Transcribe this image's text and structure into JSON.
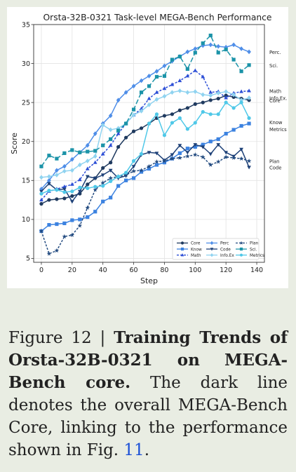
{
  "chart_data": {
    "type": "line",
    "title": "Orsta-32B-0321 Task-level MEGA-Bench Performance",
    "xlabel": "Step",
    "ylabel": "Score",
    "xlim": [
      -5,
      145
    ],
    "ylim": [
      4.5,
      35
    ],
    "xticks": [
      0,
      20,
      40,
      60,
      80,
      100,
      120,
      140
    ],
    "yticks": [
      5,
      10,
      15,
      20,
      25,
      30,
      35
    ],
    "grid": true,
    "legend": "bottom-right",
    "x": [
      0,
      5,
      10,
      15,
      20,
      25,
      30,
      35,
      40,
      45,
      50,
      55,
      60,
      65,
      70,
      75,
      80,
      85,
      90,
      95,
      100,
      105,
      110,
      115,
      120,
      125,
      130,
      135
    ],
    "series": [
      {
        "name": "Core",
        "label": "Core",
        "color": "#1f3a5f",
        "marker": "circle",
        "dash": "",
        "values": [
          12.0,
          12.5,
          12.6,
          12.7,
          13.0,
          13.3,
          14.5,
          15.3,
          16.6,
          17.3,
          19.3,
          20.5,
          21.3,
          21.7,
          22.3,
          23.0,
          23.3,
          23.5,
          24.0,
          24.3,
          24.8,
          25.0,
          25.3,
          25.5,
          25.9,
          25.7,
          25.5,
          25.3
        ]
      },
      {
        "name": "Know",
        "label": "Know\nMetrics",
        "color": "#3c82e0",
        "marker": "square",
        "dash": "",
        "values": [
          8.5,
          9.3,
          9.4,
          9.5,
          9.9,
          10.0,
          10.3,
          11.0,
          12.3,
          12.8,
          14.3,
          15.0,
          15.3,
          16.1,
          16.5,
          17.0,
          17.3,
          17.8,
          18.5,
          19.1,
          19.3,
          19.6,
          20.0,
          20.3,
          21.0,
          21.5,
          22.0,
          22.3
        ]
      },
      {
        "name": "Math",
        "label": "Math",
        "color": "#2c4ed6",
        "marker": "triangle-up",
        "dash": "3,2",
        "values": [
          12.5,
          13.6,
          13.9,
          14.2,
          14.5,
          15.1,
          16.5,
          17.3,
          18.4,
          19.5,
          21.0,
          22.3,
          23.4,
          24.2,
          25.5,
          26.3,
          26.8,
          27.3,
          27.8,
          28.4,
          29.1,
          28.3,
          26.3,
          26.4,
          25.6,
          26.2,
          26.4,
          26.5
        ]
      },
      {
        "name": "Perc",
        "label": "Perc.",
        "color": "#4f8ee8",
        "marker": "diamond",
        "dash": "",
        "values": [
          13.9,
          15.0,
          16.3,
          16.8,
          17.7,
          18.6,
          19.5,
          21.0,
          22.3,
          23.3,
          25.3,
          26.3,
          27.1,
          27.8,
          28.4,
          29.0,
          29.7,
          30.3,
          30.9,
          31.5,
          31.9,
          32.3,
          32.4,
          32.2,
          32.1,
          32.4,
          31.9,
          31.5
        ]
      },
      {
        "name": "Code",
        "label": "Code",
        "color": "#1e4178",
        "marker": "triangle-down",
        "dash": "",
        "values": [
          13.6,
          14.6,
          13.8,
          13.9,
          12.3,
          13.6,
          15.5,
          15.3,
          15.7,
          16.3,
          15.3,
          15.6,
          16.8,
          18.3,
          18.6,
          18.5,
          17.6,
          18.3,
          19.5,
          18.6,
          19.6,
          19.3,
          18.4,
          19.6,
          18.6,
          18.1,
          19.0,
          16.7
        ]
      },
      {
        "name": "Info.Ex",
        "label": "Info.Ex.",
        "color": "#8fd3f0",
        "marker": "diamond",
        "dash": "",
        "values": [
          15.4,
          15.5,
          15.7,
          16.2,
          16.3,
          17.0,
          17.5,
          18.1,
          22.1,
          21.5,
          21.7,
          22.3,
          23.4,
          23.9,
          24.7,
          25.4,
          25.8,
          26.3,
          26.5,
          26.3,
          26.4,
          26.0,
          25.9,
          26.2,
          26.4,
          26.0,
          25.3,
          25.6
        ]
      },
      {
        "name": "Plan",
        "label": "Plan",
        "color": "#234b80",
        "marker": "star",
        "dash": "3,2",
        "values": [
          8.5,
          5.6,
          6.0,
          7.8,
          8.0,
          9.2,
          11.5,
          13.8,
          14.7,
          15.3,
          15.5,
          15.7,
          16.2,
          16.3,
          16.8,
          17.4,
          17.5,
          17.8,
          17.9,
          18.1,
          18.3,
          18.0,
          17.0,
          17.4,
          18.0,
          17.9,
          17.8,
          17.5
        ]
      },
      {
        "name": "Sci",
        "label": "Sci.",
        "color": "#1b93a8",
        "marker": "square",
        "dash": "7,3",
        "values": [
          16.8,
          18.2,
          17.8,
          18.5,
          18.9,
          18.6,
          18.7,
          18.8,
          19.5,
          20.3,
          21.4,
          22.3,
          24.1,
          26.3,
          27.1,
          28.3,
          28.4,
          30.5,
          30.9,
          29.3,
          31.4,
          32.6,
          33.6,
          31.4,
          31.8,
          30.5,
          29.0,
          29.8
        ]
      },
      {
        "name": "Metrics",
        "label": "",
        "color": "#4fc8e8",
        "marker": "circle",
        "dash": "",
        "values": [
          13.3,
          13.7,
          13.8,
          13.5,
          13.6,
          14.1,
          14.0,
          14.2,
          14.3,
          14.9,
          15.5,
          16.0,
          17.5,
          18.4,
          22.3,
          23.5,
          20.8,
          22.4,
          23.0,
          21.6,
          22.4,
          23.8,
          23.5,
          23.5,
          25.0,
          24.3,
          25.0,
          23.0
        ]
      }
    ],
    "legend_order": [
      "Core",
      "Know",
      "Math",
      "Perc",
      "Code",
      "Info.Ex",
      "Plan",
      "Sci",
      "Metrics"
    ],
    "legend_labels": {
      "Core": "Core",
      "Know": "Know",
      "Math": "Math",
      "Perc": "Perc",
      "Code": "Code",
      "Info.Ex": "Info.Ex",
      "Plan": "Plan",
      "Sci": "Sci.",
      "Metrics": "Metrics"
    }
  },
  "caption": {
    "figure_label": "Figure 12 | ",
    "bold_title": "Training Trends of Orsta-32B-0321 on MEGA-Bench core.",
    "text": " The dark line denotes the overall MEGA-Bench Core, link­ing to the performance shown in Fig. ",
    "ref": "11",
    "end": "."
  }
}
